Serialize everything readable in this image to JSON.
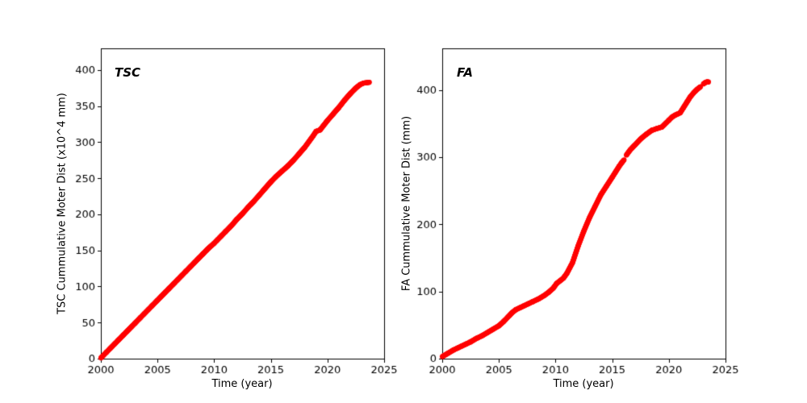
{
  "figure": {
    "background": "#ffffff"
  },
  "chart_data": [
    {
      "type": "scatter",
      "panel_label": "TSC",
      "xlabel": "Time (year)",
      "ylabel": "TSC Cummulative Moter Dist (x10^4 mm)",
      "xlim": [
        2000,
        2025
      ],
      "ylim": [
        0,
        430
      ],
      "xticks": [
        2000,
        2005,
        2010,
        2015,
        2020,
        2025
      ],
      "yticks": [
        0,
        50,
        100,
        150,
        200,
        250,
        300,
        350,
        400
      ],
      "color": "#ff0000",
      "marker_radius": 3.1,
      "grid": false,
      "legend": "none",
      "segments": [
        {
          "points": [
            [
              2000,
              1
            ],
            [
              2000.5,
              9
            ],
            [
              2001,
              17
            ],
            [
              2001.5,
              25
            ],
            [
              2002,
              33
            ],
            [
              2002.5,
              41
            ],
            [
              2003,
              49
            ],
            [
              2003.5,
              57
            ],
            [
              2004,
              65
            ],
            [
              2004.5,
              73
            ],
            [
              2005,
              81
            ],
            [
              2005.5,
              89
            ],
            [
              2006,
              97
            ],
            [
              2006.5,
              105
            ],
            [
              2007,
              113
            ],
            [
              2007.5,
              121
            ],
            [
              2008,
              129
            ],
            [
              2008.5,
              137
            ],
            [
              2009,
              145
            ],
            [
              2009.5,
              153
            ],
            [
              2010,
              160
            ],
            [
              2010.5,
              168
            ],
            [
              2011,
              176
            ],
            [
              2011.5,
              184
            ],
            [
              2012,
              193
            ],
            [
              2012.5,
              201
            ],
            [
              2013,
              210
            ],
            [
              2013.5,
              218
            ],
            [
              2014,
              227
            ],
            [
              2014.5,
              236
            ],
            [
              2015,
              245
            ],
            [
              2015.5,
              253
            ],
            [
              2016,
              260
            ],
            [
              2016.5,
              267
            ],
            [
              2017,
              275
            ],
            [
              2017.5,
              284
            ],
            [
              2018,
              293
            ],
            [
              2018.7,
              308
            ],
            [
              2019,
              315
            ],
            [
              2019.35,
              317
            ],
            [
              2020,
              330
            ],
            [
              2020.5,
              339
            ],
            [
              2021,
              348
            ],
            [
              2021.5,
              358
            ],
            [
              2022,
              367
            ],
            [
              2022.5,
              375
            ],
            [
              2022.9,
              380
            ],
            [
              2023.2,
              382
            ],
            [
              2023.7,
              383
            ]
          ]
        }
      ]
    },
    {
      "type": "scatter",
      "panel_label": "FA",
      "xlabel": "Time (year)",
      "ylabel": "FA Cummulative Moter Dist (mm)",
      "xlim": [
        2000,
        2025
      ],
      "ylim": [
        0,
        462
      ],
      "xticks": [
        2000,
        2005,
        2010,
        2015,
        2020,
        2025
      ],
      "yticks": [
        0,
        100,
        200,
        300,
        400
      ],
      "color": "#ff0000",
      "marker_radius": 3.1,
      "grid": false,
      "legend": "none",
      "segments": [
        {
          "points": [
            [
              2000,
              3
            ],
            [
              2000.5,
              8
            ],
            [
              2001,
              13
            ],
            [
              2001.5,
              17
            ],
            [
              2002,
              21
            ],
            [
              2002.5,
              25
            ],
            [
              2003,
              30
            ],
            [
              2003.5,
              34
            ],
            [
              2004,
              39
            ],
            [
              2004.5,
              44
            ],
            [
              2005,
              49
            ],
            [
              2005.4,
              55
            ],
            [
              2005.8,
              62
            ],
            [
              2006.2,
              69
            ],
            [
              2006.5,
              73
            ],
            [
              2007,
              77
            ],
            [
              2007.5,
              81
            ],
            [
              2008,
              85
            ],
            [
              2008.5,
              89
            ],
            [
              2009,
              94
            ],
            [
              2009.4,
              99
            ],
            [
              2009.8,
              105
            ],
            [
              2010.1,
              112
            ],
            [
              2010.4,
              116
            ],
            [
              2010.7,
              120
            ],
            [
              2011,
              127
            ],
            [
              2011.5,
              143
            ],
            [
              2012,
              168
            ],
            [
              2012.5,
              190
            ],
            [
              2013,
              210
            ],
            [
              2013.5,
              227
            ],
            [
              2014,
              244
            ],
            [
              2014.5,
              257
            ],
            [
              2015,
              270
            ],
            [
              2015.3,
              278
            ],
            [
              2015.6,
              286
            ],
            [
              2015.85,
              292
            ],
            [
              2016.05,
              296
            ]
          ]
        },
        {
          "points": [
            [
              2016.25,
              303
            ],
            [
              2016.6,
              311
            ],
            [
              2017,
              318
            ],
            [
              2017.5,
              327
            ],
            [
              2018,
              334
            ],
            [
              2018.5,
              340
            ],
            [
              2019,
              343
            ],
            [
              2019.4,
              345
            ],
            [
              2019.7,
              350
            ],
            [
              2020,
              355
            ],
            [
              2020.3,
              360
            ],
            [
              2020.6,
              363
            ],
            [
              2021,
              366
            ],
            [
              2021.3,
              374
            ],
            [
              2021.6,
              382
            ],
            [
              2021.9,
              390
            ],
            [
              2022.2,
              396
            ],
            [
              2022.5,
              401
            ],
            [
              2022.8,
              405
            ]
          ]
        },
        {
          "points": [
            [
              2023.05,
              409
            ],
            [
              2023.2,
              411
            ],
            [
              2023.35,
              412
            ],
            [
              2023.5,
              412
            ]
          ]
        }
      ]
    }
  ]
}
